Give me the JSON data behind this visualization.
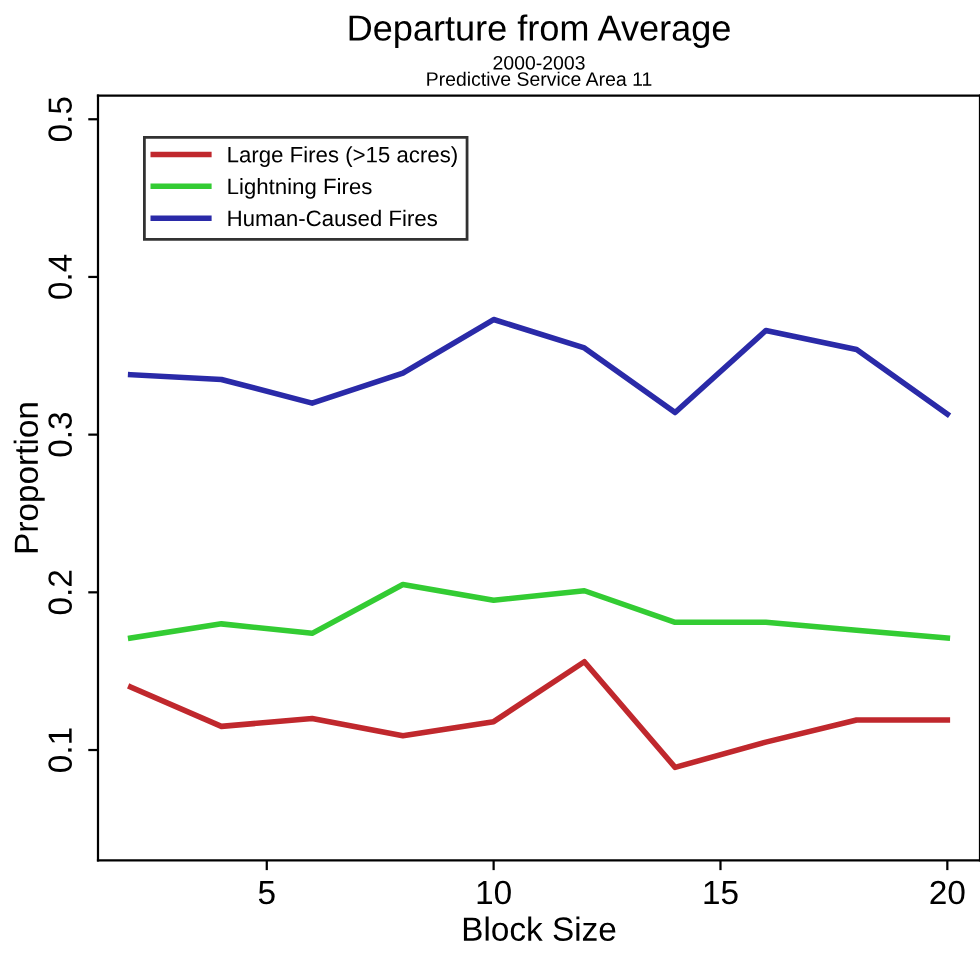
{
  "chart_data": {
    "type": "line",
    "title": "Departure from Average",
    "subtitle": "2000-2003",
    "annotations": [
      "Predictive Service Area 11"
    ],
    "xlabel": "Block Size",
    "ylabel": "Proportion",
    "x": [
      2,
      4,
      6,
      8,
      10,
      12,
      14,
      16,
      18,
      20
    ],
    "series": [
      {
        "name": "Large Fires (>15 acres)",
        "color": "#c0282d",
        "values": [
          0.14,
          0.115,
          0.12,
          0.109,
          0.118,
          0.156,
          0.089,
          0.105,
          0.119,
          0.119
        ]
      },
      {
        "name": "Lightning Fires",
        "color": "#33cc33",
        "values": [
          0.171,
          0.18,
          0.174,
          0.205,
          0.195,
          0.201,
          0.181,
          0.181,
          0.176,
          0.171
        ]
      },
      {
        "name": "Human-Caused Fires",
        "color": "#2a2aa8",
        "values": [
          0.338,
          0.335,
          0.32,
          0.339,
          0.373,
          0.355,
          0.314,
          0.366,
          0.354,
          0.313
        ]
      }
    ],
    "xlim": [
      1.28,
      20.72
    ],
    "xticks": [
      5,
      10,
      15,
      20
    ],
    "ylim": [
      0.03,
      0.515
    ],
    "yticks": [
      0.1,
      0.2,
      0.3,
      0.4,
      0.5
    ],
    "legend": "top left",
    "grid": false,
    "marker": "none",
    "line_style": "solid"
  }
}
